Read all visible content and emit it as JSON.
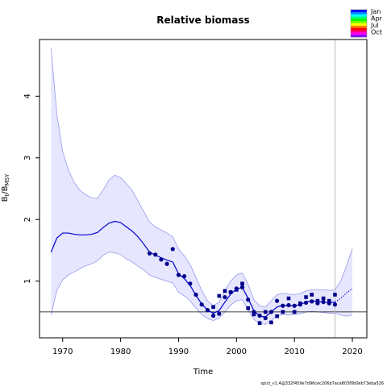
{
  "chart_data": {
    "type": "line",
    "title": "Relative biomass",
    "xlabel": "Time",
    "ylabel": {
      "main": "B",
      "sub1": "t",
      "sep": "/B",
      "sub2": "MSY"
    },
    "xlim": [
      1966,
      2022.5
    ],
    "ylim": [
      0.08,
      4.92
    ],
    "x_ticks": [
      1970,
      1980,
      1990,
      2000,
      2010,
      2020
    ],
    "y_ticks": [
      1,
      2,
      3,
      4
    ],
    "reference_line_y": 0.5,
    "vertical_line_x": 2017,
    "legend_entries": [
      "Jan",
      "Apr",
      "Jul",
      "Oct"
    ],
    "legend_colors": [
      "#0000ff",
      "#0080ff",
      "#00ffff",
      "#00ff80",
      "#00ff00",
      "#80ff00",
      "#ffff00",
      "#ff8000",
      "#ff0000",
      "#ff0080",
      "#ff00ff",
      "#8000ff"
    ],
    "colors": {
      "line": "#0000cc",
      "band_fill": "#e6e6ff",
      "band_edge": "#9999ee",
      "points": "#00008b",
      "frame": "#000000",
      "vline": "#bbbbbb"
    },
    "estimate": [
      [
        1968,
        1.47
      ],
      [
        1969,
        1.7
      ],
      [
        1970,
        1.78
      ],
      [
        1971,
        1.78
      ],
      [
        1972,
        1.76
      ],
      [
        1973,
        1.75
      ],
      [
        1974,
        1.75
      ],
      [
        1975,
        1.76
      ],
      [
        1976,
        1.79
      ],
      [
        1977,
        1.87
      ],
      [
        1978,
        1.94
      ],
      [
        1979,
        1.97
      ],
      [
        1980,
        1.95
      ],
      [
        1981,
        1.88
      ],
      [
        1982,
        1.81
      ],
      [
        1983,
        1.72
      ],
      [
        1984,
        1.6
      ],
      [
        1985,
        1.47
      ],
      [
        1986,
        1.42
      ],
      [
        1987,
        1.38
      ],
      [
        1988,
        1.34
      ],
      [
        1989,
        1.31
      ],
      [
        1990,
        1.12
      ],
      [
        1991,
        1.04
      ],
      [
        1992,
        0.93
      ],
      [
        1993,
        0.77
      ],
      [
        1994,
        0.63
      ],
      [
        1995,
        0.53
      ],
      [
        1996,
        0.48
      ],
      [
        1997,
        0.52
      ],
      [
        1998,
        0.66
      ],
      [
        1999,
        0.79
      ],
      [
        2000,
        0.87
      ],
      [
        2001,
        0.9
      ],
      [
        2002,
        0.72
      ],
      [
        2003,
        0.52
      ],
      [
        2004,
        0.43
      ],
      [
        2005,
        0.42
      ],
      [
        2006,
        0.5
      ],
      [
        2007,
        0.58
      ],
      [
        2008,
        0.61
      ],
      [
        2009,
        0.6
      ],
      [
        2010,
        0.6
      ],
      [
        2011,
        0.62
      ],
      [
        2012,
        0.66
      ],
      [
        2013,
        0.68
      ],
      [
        2014,
        0.67
      ],
      [
        2015,
        0.66
      ],
      [
        2016,
        0.65
      ],
      [
        2017,
        0.66
      ]
    ],
    "forecast": [
      [
        2017,
        0.66
      ],
      [
        2018,
        0.72
      ],
      [
        2019,
        0.81
      ],
      [
        2020,
        0.88
      ]
    ],
    "ci_upper": [
      [
        1968,
        4.78
      ],
      [
        1969,
        3.7
      ],
      [
        1970,
        3.1
      ],
      [
        1971,
        2.8
      ],
      [
        1972,
        2.6
      ],
      [
        1973,
        2.47
      ],
      [
        1974,
        2.4
      ],
      [
        1975,
        2.35
      ],
      [
        1976,
        2.34
      ],
      [
        1977,
        2.48
      ],
      [
        1978,
        2.64
      ],
      [
        1979,
        2.72
      ],
      [
        1980,
        2.68
      ],
      [
        1981,
        2.58
      ],
      [
        1982,
        2.47
      ],
      [
        1983,
        2.3
      ],
      [
        1984,
        2.13
      ],
      [
        1985,
        1.96
      ],
      [
        1986,
        1.88
      ],
      [
        1987,
        1.83
      ],
      [
        1988,
        1.78
      ],
      [
        1989,
        1.72
      ],
      [
        1990,
        1.52
      ],
      [
        1991,
        1.41
      ],
      [
        1992,
        1.27
      ],
      [
        1993,
        1.06
      ],
      [
        1994,
        0.85
      ],
      [
        1995,
        0.68
      ],
      [
        1996,
        0.6
      ],
      [
        1997,
        0.66
      ],
      [
        1998,
        0.85
      ],
      [
        1999,
        1.0
      ],
      [
        2000,
        1.1
      ],
      [
        2001,
        1.13
      ],
      [
        2002,
        0.95
      ],
      [
        2003,
        0.7
      ],
      [
        2004,
        0.6
      ],
      [
        2005,
        0.58
      ],
      [
        2006,
        0.68
      ],
      [
        2007,
        0.78
      ],
      [
        2008,
        0.8
      ],
      [
        2009,
        0.79
      ],
      [
        2010,
        0.78
      ],
      [
        2011,
        0.8
      ],
      [
        2012,
        0.84
      ],
      [
        2013,
        0.86
      ],
      [
        2014,
        0.86
      ],
      [
        2015,
        0.86
      ],
      [
        2016,
        0.85
      ],
      [
        2017,
        0.86
      ],
      [
        2018,
        1.0
      ],
      [
        2019,
        1.25
      ],
      [
        2020,
        1.53
      ]
    ],
    "ci_lower": [
      [
        1968,
        0.45
      ],
      [
        1969,
        0.85
      ],
      [
        1970,
        1.02
      ],
      [
        1971,
        1.1
      ],
      [
        1972,
        1.15
      ],
      [
        1973,
        1.2
      ],
      [
        1974,
        1.25
      ],
      [
        1975,
        1.28
      ],
      [
        1976,
        1.33
      ],
      [
        1977,
        1.42
      ],
      [
        1978,
        1.47
      ],
      [
        1979,
        1.46
      ],
      [
        1980,
        1.43
      ],
      [
        1981,
        1.36
      ],
      [
        1982,
        1.31
      ],
      [
        1983,
        1.24
      ],
      [
        1984,
        1.18
      ],
      [
        1985,
        1.1
      ],
      [
        1986,
        1.06
      ],
      [
        1987,
        1.03
      ],
      [
        1988,
        1.0
      ],
      [
        1989,
        0.97
      ],
      [
        1990,
        0.82
      ],
      [
        1991,
        0.76
      ],
      [
        1992,
        0.68
      ],
      [
        1993,
        0.56
      ],
      [
        1994,
        0.46
      ],
      [
        1995,
        0.39
      ],
      [
        1996,
        0.36
      ],
      [
        1997,
        0.4
      ],
      [
        1998,
        0.5
      ],
      [
        1999,
        0.61
      ],
      [
        2000,
        0.68
      ],
      [
        2001,
        0.7
      ],
      [
        2002,
        0.53
      ],
      [
        2003,
        0.38
      ],
      [
        2004,
        0.31
      ],
      [
        2005,
        0.3
      ],
      [
        2006,
        0.36
      ],
      [
        2007,
        0.43
      ],
      [
        2008,
        0.46
      ],
      [
        2009,
        0.45
      ],
      [
        2010,
        0.46
      ],
      [
        2011,
        0.47
      ],
      [
        2012,
        0.5
      ],
      [
        2013,
        0.51
      ],
      [
        2014,
        0.5
      ],
      [
        2015,
        0.49
      ],
      [
        2016,
        0.48
      ],
      [
        2017,
        0.48
      ],
      [
        2018,
        0.45
      ],
      [
        2019,
        0.43
      ],
      [
        2020,
        0.45
      ]
    ],
    "points_circle": [
      [
        1985,
        1.45
      ],
      [
        1986,
        1.43
      ],
      [
        1987,
        1.35
      ],
      [
        1988,
        1.28
      ],
      [
        1989,
        1.52
      ],
      [
        1990,
        1.1
      ],
      [
        1991,
        1.08
      ],
      [
        1992,
        0.96
      ],
      [
        1993,
        0.78
      ],
      [
        1994,
        0.62
      ],
      [
        1995,
        0.53
      ],
      [
        1996,
        0.44
      ],
      [
        1997,
        0.47
      ],
      [
        1998,
        0.74
      ],
      [
        1999,
        0.82
      ],
      [
        2000,
        0.88
      ],
      [
        2001,
        0.9
      ],
      [
        2002,
        0.7
      ],
      [
        2003,
        0.5
      ],
      [
        2004,
        0.44
      ],
      [
        2005,
        0.4
      ],
      [
        2006,
        0.5
      ],
      [
        2007,
        0.68
      ],
      [
        2008,
        0.6
      ],
      [
        2009,
        0.61
      ],
      [
        2010,
        0.6
      ],
      [
        2011,
        0.62
      ],
      [
        2012,
        0.65
      ],
      [
        2013,
        0.67
      ],
      [
        2014,
        0.64
      ],
      [
        2015,
        0.66
      ],
      [
        2016,
        0.64
      ],
      [
        2017,
        0.62
      ]
    ],
    "points_square": [
      [
        1996,
        0.58
      ],
      [
        1997,
        0.76
      ],
      [
        1998,
        0.84
      ],
      [
        1999,
        0.82
      ],
      [
        2000,
        0.86
      ],
      [
        2001,
        0.96
      ],
      [
        2002,
        0.56
      ],
      [
        2003,
        0.46
      ],
      [
        2004,
        0.32
      ],
      [
        2005,
        0.5
      ],
      [
        2006,
        0.33
      ],
      [
        2007,
        0.43
      ],
      [
        2008,
        0.5
      ],
      [
        2009,
        0.72
      ],
      [
        2010,
        0.5
      ],
      [
        2011,
        0.64
      ],
      [
        2012,
        0.74
      ],
      [
        2013,
        0.78
      ],
      [
        2014,
        0.68
      ],
      [
        2015,
        0.72
      ],
      [
        2016,
        0.68
      ],
      [
        2017,
        0.78
      ]
    ],
    "footer_text": "spict_v1.4@332f459e7d96cec206b7aca803f0b0eb73eba526"
  }
}
